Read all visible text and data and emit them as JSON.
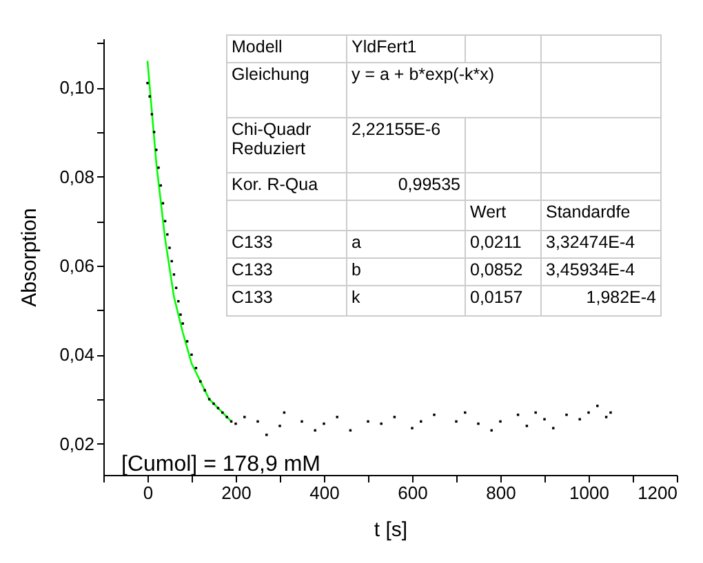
{
  "chart_data": {
    "type": "scatter",
    "xlabel": "t [s]",
    "ylabel": "Absorption",
    "xlim": [
      -100,
      1200
    ],
    "ylim": [
      0.013,
      0.111
    ],
    "xticks": [
      {
        "value": -100,
        "label": null
      },
      0,
      {
        "value": 100,
        "label": null
      },
      200,
      {
        "value": 300,
        "label": null
      },
      400,
      {
        "value": 500,
        "label": null
      },
      600,
      {
        "value": 700,
        "label": null
      },
      800,
      {
        "value": 900,
        "label": null
      },
      1000,
      {
        "value": 1100,
        "label": null
      },
      1200
    ],
    "yticks": [
      {
        "value": 0.02,
        "label": "0,02"
      },
      {
        "value": 0.03,
        "label": null
      },
      {
        "value": 0.04,
        "label": "0,04"
      },
      {
        "value": 0.05,
        "label": null
      },
      {
        "value": 0.06,
        "label": "0,06"
      },
      {
        "value": 0.07,
        "label": null
      },
      {
        "value": 0.08,
        "label": "0,08"
      },
      {
        "value": 0.09,
        "label": null
      },
      {
        "value": 0.1,
        "label": "0,10"
      },
      {
        "value": 0.11,
        "label": null
      }
    ],
    "annotations": [
      "[Cumol] = 178,9 mM",
      "Modell",
      "YldFert1",
      "Gleichung",
      "y = a + b*exp(-k*x)",
      "Chi-Quadr Reduziert",
      "2,22155E-6",
      "Kor. R-Qua",
      "0,99535",
      "Wert",
      "Standardfe",
      "C133",
      "a",
      "0,0211",
      "3,32474E-4",
      "C133",
      "b",
      "0,0852",
      "3,45934E-4",
      "C133",
      "k",
      "0,0157",
      "1,982E-4"
    ],
    "series": [
      {
        "type": "scatter",
        "color": "#000000",
        "marker": "square",
        "x": [
          0,
          5,
          10,
          15,
          20,
          25,
          30,
          35,
          40,
          45,
          50,
          55,
          60,
          65,
          70,
          75,
          80,
          90,
          100,
          110,
          120,
          130,
          140,
          150,
          160,
          170,
          180,
          190,
          200,
          220,
          250,
          270,
          300,
          310,
          350,
          380,
          400,
          430,
          460,
          500,
          530,
          560,
          600,
          620,
          650,
          700,
          720,
          750,
          780,
          800,
          840,
          860,
          880,
          900,
          920,
          950,
          980,
          1000,
          1020,
          1040,
          1050
        ],
        "values": [
          0.101,
          0.098,
          0.094,
          0.09,
          0.086,
          0.082,
          0.078,
          0.074,
          0.07,
          0.067,
          0.064,
          0.061,
          0.058,
          0.055,
          0.052,
          0.049,
          0.047,
          0.043,
          0.04,
          0.037,
          0.034,
          0.032,
          0.03,
          0.029,
          0.028,
          0.027,
          0.026,
          0.025,
          0.0245,
          0.026,
          0.025,
          0.022,
          0.024,
          0.027,
          0.025,
          0.023,
          0.0245,
          0.026,
          0.023,
          0.025,
          0.0245,
          0.026,
          0.0235,
          0.025,
          0.0265,
          0.025,
          0.027,
          0.0245,
          0.023,
          0.025,
          0.0265,
          0.024,
          0.027,
          0.0255,
          0.0235,
          0.0265,
          0.0255,
          0.027,
          0.0285,
          0.026,
          0.027
        ]
      },
      {
        "type": "line",
        "color": "#00ff00",
        "marker": "none",
        "line_style": "solid",
        "x": [
          0,
          20,
          40,
          60,
          80,
          100,
          120,
          140,
          160,
          190
        ],
        "values": [
          0.106,
          0.083,
          0.066,
          0.053,
          0.045,
          0.038,
          0.034,
          0.03,
          0.028,
          0.025
        ]
      }
    ]
  }
}
